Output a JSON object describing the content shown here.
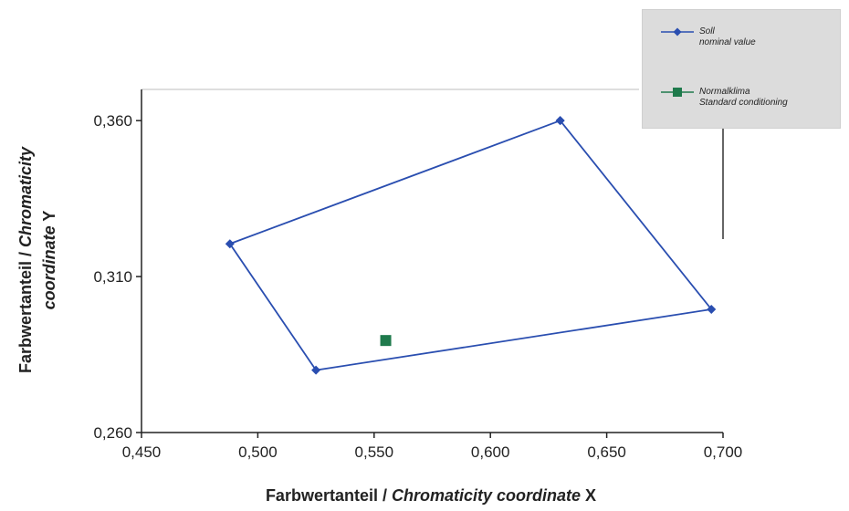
{
  "chart_data": {
    "type": "scatter",
    "title": "",
    "xlabel": {
      "plain": "Farbwertanteil / ",
      "italic": "Chromaticity coordinate",
      "suffix": " X"
    },
    "ylabel": {
      "line1_plain": "Farbwertanteil / ",
      "line1_italic": "Chromaticity",
      "line2_italic": "coordinate",
      "line2_suffix": " Y"
    },
    "xlim": [
      0.45,
      0.7
    ],
    "ylim": [
      0.26,
      0.37
    ],
    "xticks": [
      0.45,
      0.5,
      0.55,
      0.6,
      0.65,
      0.7
    ],
    "xtick_labels": [
      "0,450",
      "0,500",
      "0,550",
      "0,600",
      "0,650",
      "0,700"
    ],
    "yticks": [
      0.26,
      0.31,
      0.36
    ],
    "ytick_labels": [
      "0,260",
      "0,310",
      "0,360"
    ],
    "grid": false,
    "legend_position": "top-right",
    "series": [
      {
        "name": "Soll\nnominal value",
        "label_line1": "Soll",
        "label_line2": "nominal value",
        "color": "#2a4eb0",
        "marker": "diamond",
        "mode": "line",
        "x": [
          0.63,
          0.695,
          0.525,
          0.488,
          0.63
        ],
        "y": [
          0.36,
          0.2995,
          0.28,
          0.3205,
          0.36
        ]
      },
      {
        "name": "Normalklima\nStandard conditioning",
        "label_line1": "Normalklima",
        "label_line2": "Standard conditioning",
        "color": "#1f7a4c",
        "marker": "square",
        "mode": "markers",
        "x": [
          0.555
        ],
        "y": [
          0.2895
        ]
      }
    ]
  }
}
